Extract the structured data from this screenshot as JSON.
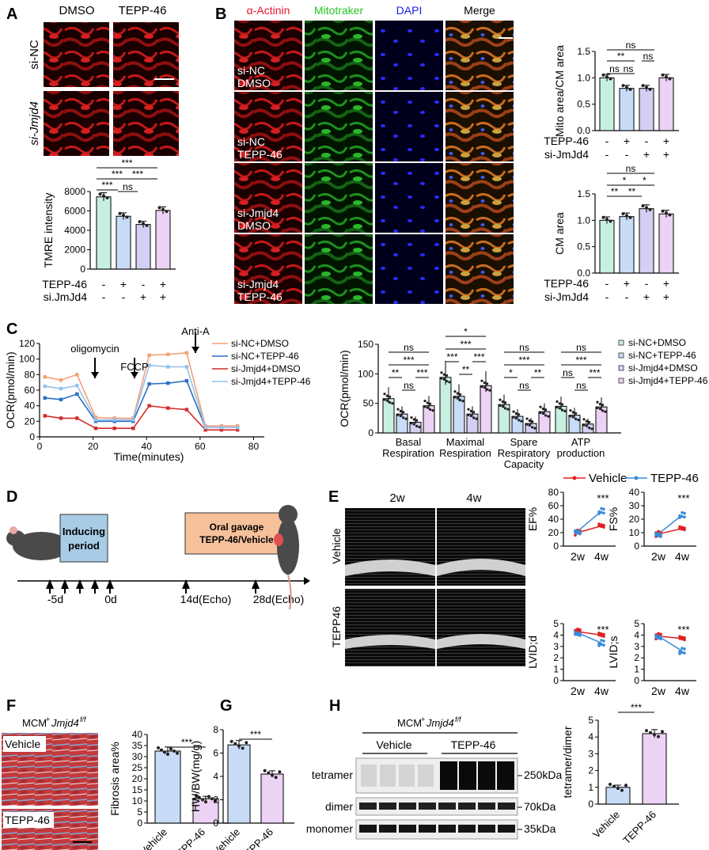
{
  "panels": {
    "a": "A",
    "b": "B",
    "c": "C",
    "d": "D",
    "e": "E",
    "f": "F",
    "g": "G",
    "h": "H"
  },
  "A": {
    "col_dmso": "DMSO",
    "col_tepp": "TEPP-46",
    "row_sinc": "si-NC",
    "row_sijmjd4": "si-Jmjd4",
    "ylabel": "TMRE intensity",
    "yticks": [
      "0",
      "2000",
      "4000",
      "6000",
      "8000"
    ],
    "sig": [
      "***",
      "***",
      "***",
      "***",
      "ns"
    ],
    "row1_label": "TEPP-46",
    "row2_label": "si.JmJd4",
    "row1": [
      "-",
      "+",
      "-",
      "+"
    ],
    "row2": [
      "-",
      "-",
      "+",
      "+"
    ],
    "values": [
      7450,
      5450,
      4600,
      6050
    ]
  },
  "B": {
    "headers": [
      "α-Actinin",
      "Mitotraker",
      "DAPI",
      "Merge"
    ],
    "header_colors": [
      "#e8142a",
      "#26c226",
      "#1a1adf",
      "#000000"
    ],
    "rows": [
      [
        "si-NC",
        "DMSO"
      ],
      [
        "si-NC",
        "TEPP-46"
      ],
      [
        "si-Jmjd4",
        "DMSO"
      ],
      [
        "si-Jmjd4",
        "TEPP-46"
      ]
    ],
    "chart1": {
      "ylabel": "Mito area/CM area",
      "yticks": [
        "0.0",
        "0.5",
        "1.0",
        "1.5"
      ],
      "values": [
        1.0,
        0.8,
        0.8,
        1.0
      ],
      "sig": [
        "ns",
        "**",
        "ns",
        "ns",
        "ns"
      ]
    },
    "chart2": {
      "ylabel": "CM area",
      "yticks": [
        "0.0",
        "0.5",
        "1.0",
        "1.5"
      ],
      "values": [
        1.0,
        1.07,
        1.22,
        1.12
      ],
      "sig": [
        "ns",
        "*",
        "*",
        "**",
        "**"
      ]
    },
    "row1_label": "TEPP-46",
    "row2_label": "si-JmJd4",
    "row1": [
      "-",
      "+",
      "-",
      "+"
    ],
    "row2": [
      "-",
      "-",
      "+",
      "+"
    ]
  },
  "C": {
    "ylabel": "OCR(pmol/min)",
    "xlabel": "Time(minutes)",
    "yticks": [
      "0",
      "20",
      "40",
      "60",
      "80",
      "100",
      "120"
    ],
    "xticks": [
      "0",
      "20",
      "40",
      "60",
      "80"
    ],
    "arrows": [
      "oligomycin",
      "FCCP",
      "Anti-A"
    ],
    "legend": [
      "si-NC+DMSO",
      "si-NC+TEPP-46",
      "si-Jmjd4+DMSO",
      "si-Jmjd4+TEPP-46"
    ],
    "bar_yticks": [
      "0",
      "50",
      "100",
      "150"
    ],
    "bar_ylabel": "OCR(pmol/min)",
    "groups": [
      [
        "Basal",
        "Respiration"
      ],
      [
        "Maximal",
        "Respiration"
      ],
      [
        "Spare",
        "Respiratory",
        "Capacity"
      ],
      [
        "ATP",
        "production"
      ]
    ],
    "sig_basal": [
      "ns",
      "***",
      "***",
      "**",
      "ns"
    ],
    "sig_max": [
      "*",
      "***",
      "***",
      "***",
      "**"
    ],
    "sig_spare": [
      "ns",
      "***",
      "**",
      "*",
      "ns"
    ],
    "sig_atp": [
      "ns",
      "***",
      "***",
      "ns",
      "ns"
    ]
  },
  "D": {
    "box1": [
      "Inducing",
      "period"
    ],
    "box2": [
      "Oral gavage",
      "TEPP-46/Vehicle"
    ],
    "ticks": [
      "-5d",
      "0d",
      "14d(Echo)",
      "28d(Echo)"
    ]
  },
  "E": {
    "col1": "2w",
    "col2": "4w",
    "row1": "Vehicle",
    "row2": "TEPP46",
    "legend": [
      "Vehicle",
      "TEPP-46"
    ],
    "charts": [
      {
        "ylabel": "EF%",
        "yticks": [
          "0",
          "20",
          "40",
          "60",
          "80"
        ],
        "sig": "***"
      },
      {
        "ylabel": "FS%",
        "yticks": [
          "0",
          "10",
          "20",
          "30",
          "40"
        ],
        "sig": "***"
      },
      {
        "ylabel": "LVID;d",
        "yticks": [
          "0",
          "1",
          "2",
          "3",
          "4",
          "5"
        ],
        "sig": "***"
      },
      {
        "ylabel": "LVID;s",
        "yticks": [
          "0",
          "1",
          "2",
          "3",
          "4",
          "5"
        ],
        "sig": "***"
      }
    ],
    "xticks": [
      "2w",
      "4w"
    ]
  },
  "F": {
    "title": "MCM+Jmjd4 f/f",
    "img1": "Vehicle",
    "img2": "TEPP-46",
    "ylabel": "Fibrosis area%",
    "yticks": [
      "0",
      "5",
      "10",
      "15",
      "20",
      "25",
      "30",
      "35",
      "40"
    ],
    "cats": [
      "Vehicle",
      "TEPP-46"
    ],
    "values": [
      32.5,
      11.0
    ],
    "sig": "***"
  },
  "G": {
    "ylabel": "HW/BW(mg/g)",
    "yticks": [
      "0",
      "2",
      "4",
      "6",
      "8"
    ],
    "cats": [
      "Vehicle",
      "TEPP-46"
    ],
    "values": [
      6.7,
      4.2
    ],
    "sig": "***"
  },
  "H": {
    "title": "MCM+Jmjd4 f/f",
    "groups": [
      "Vehicle",
      "TEPP-46"
    ],
    "rows": [
      "tetramer",
      "dimer",
      "monomer"
    ],
    "kda": [
      "250kDa",
      "70kDa",
      "35kDa"
    ],
    "ylabel": "tetramer/dimer",
    "yticks": [
      "0",
      "1",
      "2",
      "3",
      "4",
      "5"
    ],
    "cats": [
      "Vehicle",
      "TEPP-46"
    ],
    "values": [
      1.0,
      4.2
    ],
    "sig": "***"
  },
  "chart_data": [
    {
      "type": "bar",
      "panel": "A",
      "categories": [
        "si-NC DMSO",
        "si-NC TEPP-46",
        "si-Jmjd4 DMSO",
        "si-Jmjd4 TEPP-46"
      ],
      "values": [
        7450,
        5450,
        4600,
        6050
      ],
      "ylabel": "TMRE intensity",
      "ylim": [
        0,
        8000
      ]
    },
    {
      "type": "bar",
      "panel": "B",
      "categories": [
        "1",
        "2",
        "3",
        "4"
      ],
      "values": [
        1.0,
        0.8,
        0.8,
        1.0
      ],
      "ylabel": "Mito area/CM area",
      "ylim": [
        0,
        1.5
      ]
    },
    {
      "type": "bar",
      "panel": "B",
      "categories": [
        "1",
        "2",
        "3",
        "4"
      ],
      "values": [
        1.0,
        1.07,
        1.22,
        1.12
      ],
      "ylabel": "CM area",
      "ylim": [
        0,
        1.5
      ]
    },
    {
      "type": "line",
      "panel": "C",
      "xlabel": "Time(minutes)",
      "ylabel": "OCR(pmol/min)",
      "ylim": [
        0,
        120
      ],
      "x": [
        2,
        8,
        14,
        21,
        28,
        35,
        41,
        48,
        55,
        62,
        68,
        74
      ],
      "series": [
        {
          "name": "si-NC+DMSO",
          "values": [
            77,
            73,
            80,
            25,
            24,
            24,
            105,
            106,
            108,
            14,
            14,
            14
          ]
        },
        {
          "name": "si-NC+TEPP-46",
          "values": [
            50,
            48,
            55,
            20,
            20,
            20,
            68,
            69,
            72,
            12,
            12,
            12
          ]
        },
        {
          "name": "si-Jmjd4+DMSO",
          "values": [
            27,
            24,
            24,
            11,
            11,
            11,
            40,
            37,
            35,
            9,
            9,
            9
          ]
        },
        {
          "name": "si-Jmjd4+TEPP-46",
          "values": [
            65,
            62,
            66,
            22,
            22,
            22,
            92,
            90,
            90,
            12,
            12,
            12
          ]
        }
      ]
    },
    {
      "type": "bar",
      "panel": "C",
      "ylabel": "OCR(pmol/min)",
      "ylim": [
        0,
        150
      ],
      "categories": [
        "Basal Respiration",
        "Maximal Respiration",
        "Spare Respiratory Capacity",
        "ATP production"
      ],
      "series": [
        {
          "name": "si-NC+DMSO",
          "values": [
            58,
            94,
            48,
            45
          ]
        },
        {
          "name": "si-NC+TEPP-46",
          "values": [
            32,
            62,
            28,
            30
          ]
        },
        {
          "name": "si-Jmjd4+DMSO",
          "values": [
            18,
            32,
            16,
            15
          ]
        },
        {
          "name": "si-Jmjd4+TEPP-46",
          "values": [
            46,
            80,
            36,
            44
          ]
        }
      ]
    },
    {
      "type": "line",
      "panel": "E",
      "ylabel": "EF%",
      "ylim": [
        0,
        80
      ],
      "x": [
        "2w",
        "4w"
      ],
      "series": [
        {
          "name": "Vehicle",
          "values": [
            20,
            30
          ]
        },
        {
          "name": "TEPP-46",
          "values": [
            22,
            52
          ]
        }
      ]
    },
    {
      "type": "line",
      "panel": "E",
      "ylabel": "FS%",
      "ylim": [
        0,
        40
      ],
      "x": [
        "2w",
        "4w"
      ],
      "series": [
        {
          "name": "Vehicle",
          "values": [
            9,
            13
          ]
        },
        {
          "name": "TEPP-46",
          "values": [
            9,
            23
          ]
        }
      ]
    },
    {
      "type": "line",
      "panel": "E",
      "ylabel": "LVID;d",
      "ylim": [
        0,
        5
      ],
      "x": [
        "2w",
        "4w"
      ],
      "series": [
        {
          "name": "Vehicle",
          "values": [
            4.3,
            4.0
          ]
        },
        {
          "name": "TEPP-46",
          "values": [
            4.2,
            3.3
          ]
        }
      ]
    },
    {
      "type": "line",
      "panel": "E",
      "ylabel": "LVID;s",
      "ylim": [
        0,
        5
      ],
      "x": [
        "2w",
        "4w"
      ],
      "series": [
        {
          "name": "Vehicle",
          "values": [
            3.9,
            3.7
          ]
        },
        {
          "name": "TEPP-46",
          "values": [
            3.9,
            2.6
          ]
        }
      ]
    },
    {
      "type": "bar",
      "panel": "F",
      "categories": [
        "Vehicle",
        "TEPP-46"
      ],
      "values": [
        32.5,
        11.0
      ],
      "ylabel": "Fibrosis area%",
      "ylim": [
        0,
        40
      ]
    },
    {
      "type": "bar",
      "panel": "G",
      "categories": [
        "Vehicle",
        "TEPP-46"
      ],
      "values": [
        6.7,
        4.2
      ],
      "ylabel": "HW/BW(mg/g)",
      "ylim": [
        0,
        8
      ]
    },
    {
      "type": "bar",
      "panel": "H",
      "categories": [
        "Vehicle",
        "TEPP-46"
      ],
      "values": [
        1.0,
        4.2
      ],
      "ylabel": "tetramer/dimer",
      "ylim": [
        0,
        5
      ]
    }
  ]
}
